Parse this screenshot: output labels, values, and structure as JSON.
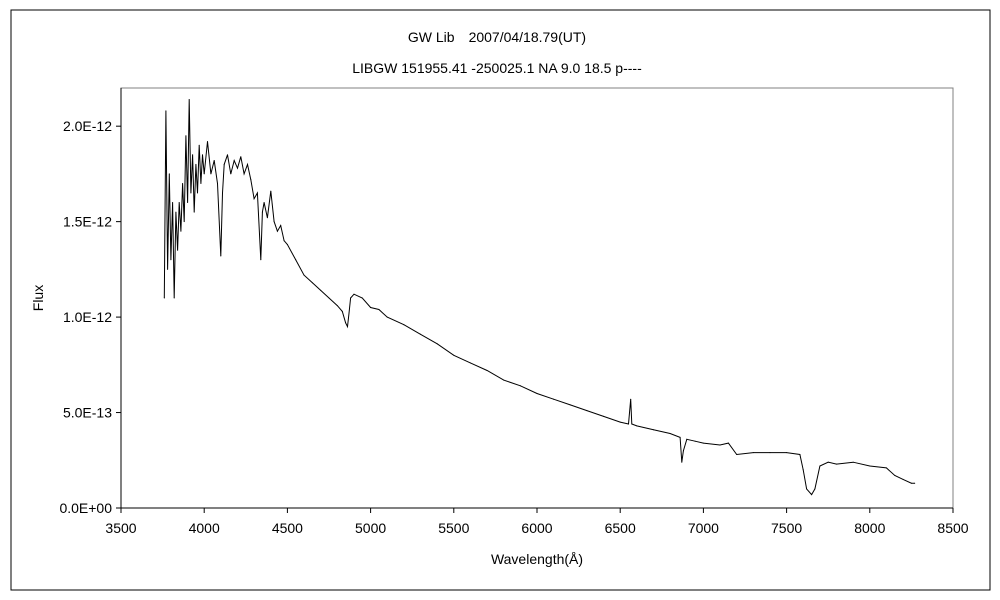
{
  "chart_data": {
    "type": "line",
    "title": "GW Lib　2007/04/18.79(UT)",
    "subtitle": "LIBGW 151955.41 -250025.1 NA 9.0 18.5 p----",
    "xlabel": "Wavelength(Å)",
    "ylabel": "Flux",
    "xlim": [
      3500,
      8500
    ],
    "ylim": [
      0,
      2.2e-12
    ],
    "xticks": [
      "3500",
      "4000",
      "4500",
      "5000",
      "5500",
      "6000",
      "6500",
      "7000",
      "7500",
      "8000",
      "8500"
    ],
    "yticks": [
      "0.0E+00",
      "5.0E-13",
      "1.0E-12",
      "1.5E-12",
      "2.0E-12"
    ],
    "grid": false,
    "series": [
      {
        "line_color": "#000000",
        "x": [
          3760,
          3770,
          3780,
          3790,
          3800,
          3810,
          3820,
          3830,
          3840,
          3850,
          3860,
          3870,
          3880,
          3890,
          3900,
          3910,
          3920,
          3930,
          3940,
          3950,
          3960,
          3970,
          3980,
          3990,
          4000,
          4020,
          4040,
          4060,
          4080,
          4100,
          4110,
          4120,
          4140,
          4160,
          4180,
          4200,
          4220,
          4240,
          4260,
          4280,
          4300,
          4320,
          4340,
          4350,
          4360,
          4380,
          4400,
          4420,
          4440,
          4460,
          4480,
          4500,
          4550,
          4600,
          4650,
          4700,
          4750,
          4800,
          4830,
          4850,
          4861,
          4870,
          4880,
          4900,
          4950,
          5000,
          5050,
          5100,
          5200,
          5300,
          5400,
          5500,
          5600,
          5700,
          5800,
          5900,
          6000,
          6100,
          6200,
          6300,
          6400,
          6500,
          6550,
          6563,
          6570,
          6600,
          6700,
          6800,
          6860,
          6870,
          6880,
          6900,
          6950,
          7000,
          7100,
          7150,
          7200,
          7300,
          7400,
          7500,
          7580,
          7600,
          7620,
          7650,
          7670,
          7700,
          7750,
          7800,
          7900,
          8000,
          8100,
          8150,
          8200,
          8250,
          8270
        ],
        "y": [
          1.1e-12,
          2.08e-12,
          1.25e-12,
          1.75e-12,
          1.3e-12,
          1.6e-12,
          1.1e-12,
          1.55e-12,
          1.35e-12,
          1.6e-12,
          1.45e-12,
          1.7e-12,
          1.5e-12,
          1.95e-12,
          1.6e-12,
          2.14e-12,
          1.65e-12,
          1.85e-12,
          1.55e-12,
          1.8e-12,
          1.65e-12,
          1.9e-12,
          1.7e-12,
          1.85e-12,
          1.75e-12,
          1.92e-12,
          1.75e-12,
          1.82e-12,
          1.7e-12,
          1.32e-12,
          1.65e-12,
          1.8e-12,
          1.85e-12,
          1.75e-12,
          1.82e-12,
          1.78e-12,
          1.84e-12,
          1.75e-12,
          1.8e-12,
          1.72e-12,
          1.62e-12,
          1.65e-12,
          1.3e-12,
          1.55e-12,
          1.6e-12,
          1.52e-12,
          1.66e-12,
          1.5e-12,
          1.45e-12,
          1.48e-12,
          1.4e-12,
          1.38e-12,
          1.3e-12,
          1.22e-12,
          1.18e-12,
          1.14e-12,
          1.1e-12,
          1.06e-12,
          1.03e-12,
          9.7e-13,
          9.5e-13,
          1.02e-12,
          1.1e-12,
          1.12e-12,
          1.1e-12,
          1.05e-12,
          1.04e-12,
          1e-12,
          9.6e-13,
          9.1e-13,
          8.6e-13,
          8e-13,
          7.6e-13,
          7.2e-13,
          6.7e-13,
          6.4e-13,
          6e-13,
          5.7e-13,
          5.4e-13,
          5.1e-13,
          4.8e-13,
          4.5e-13,
          4.4e-13,
          5.7e-13,
          4.4e-13,
          4.3e-13,
          4.1e-13,
          3.9e-13,
          3.7e-13,
          2.4e-13,
          3e-13,
          3.6e-13,
          3.5e-13,
          3.4e-13,
          3.3e-13,
          3.4e-13,
          2.8e-13,
          2.9e-13,
          2.9e-13,
          2.9e-13,
          2.8e-13,
          2e-13,
          1e-13,
          7e-14,
          1e-13,
          2.2e-13,
          2.4e-13,
          2.3e-13,
          2.4e-13,
          2.2e-13,
          2.1e-13,
          1.7e-13,
          1.5e-13,
          1.3e-13,
          1.3e-13
        ]
      }
    ]
  }
}
